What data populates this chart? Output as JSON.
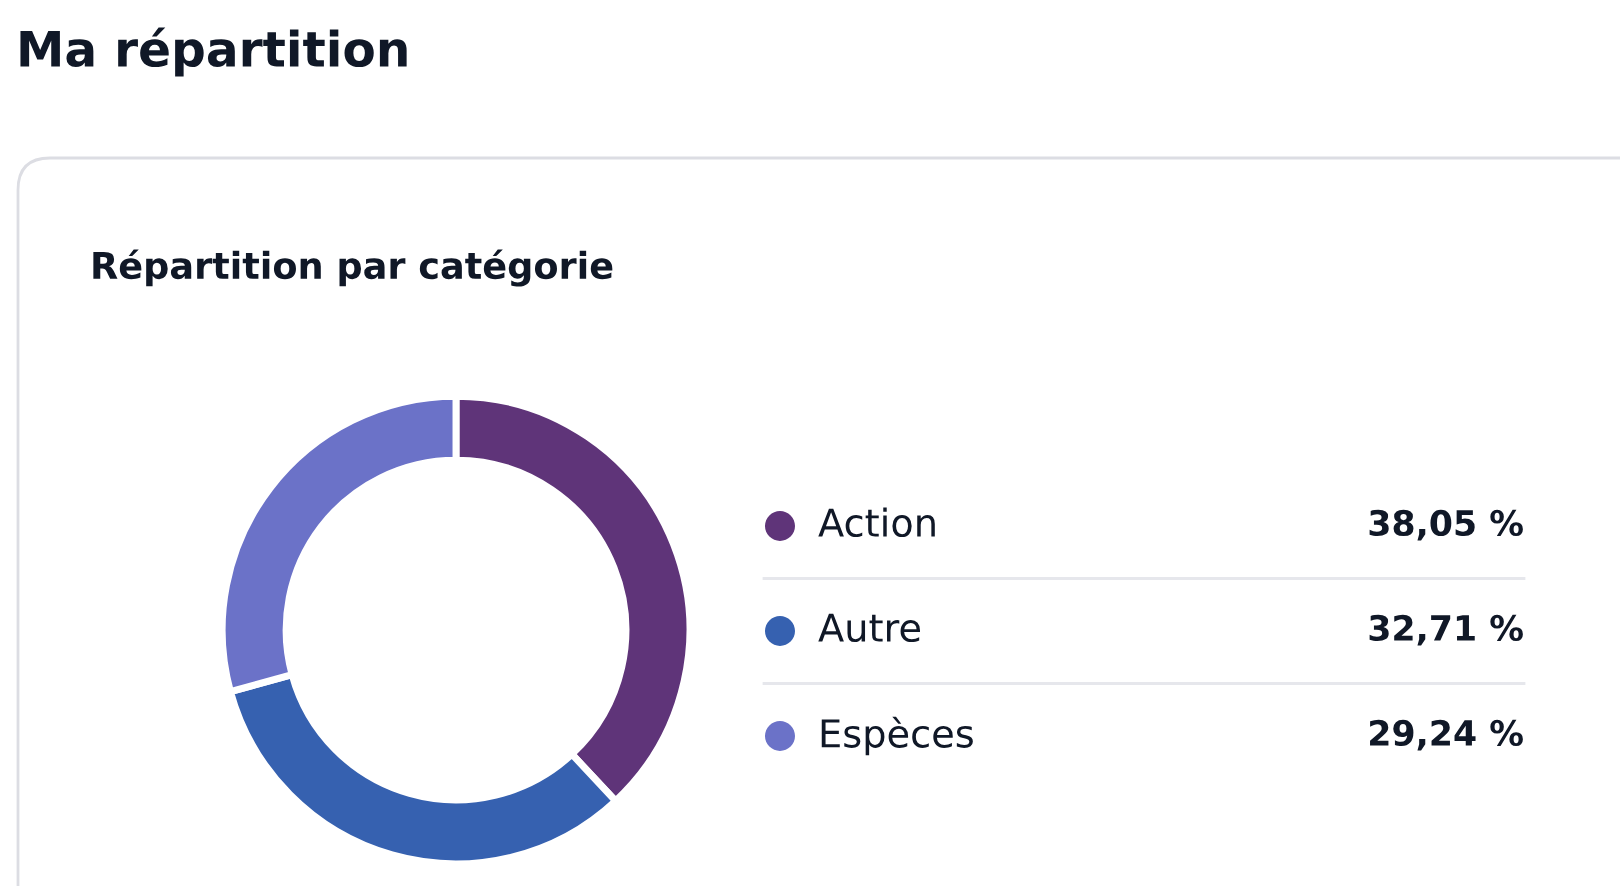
{
  "chart_data": {
    "type": "donut",
    "title": "Ma répartition",
    "subtitle": "Répartition par catégorie",
    "categories": [
      "Action",
      "Autre",
      "Espèces"
    ],
    "values": [
      38.05,
      32.71,
      29.24
    ],
    "colors": [
      "#5f3479",
      "#3661b0",
      "#6b72c8"
    ],
    "value_labels": [
      "38,05 %",
      "32,71 %",
      "29,24 %"
    ],
    "legend": "right"
  }
}
